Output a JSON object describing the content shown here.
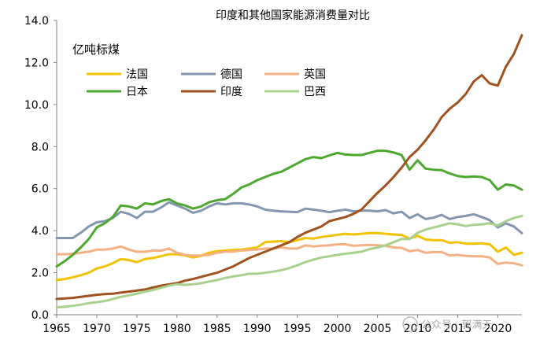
{
  "chart_data": {
    "type": "line",
    "title": "印度和其他国家能源消费量对比",
    "ylabel": "亿吨标煤",
    "xlabel": "",
    "xlim": [
      1965,
      2023
    ],
    "ylim": [
      0,
      14
    ],
    "yticks": [
      "0.0",
      "2.0",
      "4.0",
      "6.0",
      "8.0",
      "10.0",
      "12.0",
      "14.0"
    ],
    "xticks": [
      "1965",
      "1970",
      "1975",
      "1980",
      "1985",
      "1990",
      "1995",
      "2000",
      "2005",
      "2010",
      "2015",
      "2020"
    ],
    "legend_position": "top-left",
    "x": [
      1965,
      1966,
      1967,
      1968,
      1969,
      1970,
      1971,
      1972,
      1973,
      1974,
      1975,
      1976,
      1977,
      1978,
      1979,
      1980,
      1981,
      1982,
      1983,
      1984,
      1985,
      1986,
      1987,
      1988,
      1989,
      1990,
      1991,
      1992,
      1993,
      1994,
      1995,
      1996,
      1997,
      1998,
      1999,
      2000,
      2001,
      2002,
      2003,
      2004,
      2005,
      2006,
      2007,
      2008,
      2009,
      2010,
      2011,
      2012,
      2013,
      2014,
      2015,
      2016,
      2017,
      2018,
      2019,
      2020,
      2021,
      2022,
      2023
    ],
    "series": [
      {
        "name": "法国",
        "color": "#F2C200",
        "values": [
          1.65,
          1.7,
          1.78,
          1.88,
          2.0,
          2.2,
          2.3,
          2.45,
          2.65,
          2.6,
          2.5,
          2.65,
          2.7,
          2.78,
          2.88,
          2.88,
          2.82,
          2.72,
          2.8,
          2.95,
          3.02,
          3.05,
          3.08,
          3.1,
          3.15,
          3.2,
          3.45,
          3.48,
          3.5,
          3.45,
          3.55,
          3.65,
          3.62,
          3.7,
          3.75,
          3.8,
          3.85,
          3.82,
          3.85,
          3.88,
          3.88,
          3.85,
          3.82,
          3.8,
          3.62,
          3.75,
          3.58,
          3.55,
          3.55,
          3.42,
          3.45,
          3.38,
          3.38,
          3.4,
          3.35,
          3.0,
          3.2,
          2.85,
          2.95
        ]
      },
      {
        "name": "德国",
        "color": "#8497B0",
        "values": [
          3.65,
          3.65,
          3.65,
          3.9,
          4.2,
          4.4,
          4.45,
          4.6,
          4.9,
          4.8,
          4.6,
          4.9,
          4.9,
          5.1,
          5.35,
          5.2,
          5.05,
          4.85,
          4.95,
          5.15,
          5.3,
          5.25,
          5.3,
          5.3,
          5.25,
          5.15,
          5.0,
          4.95,
          4.92,
          4.9,
          4.88,
          5.05,
          5.0,
          4.95,
          4.88,
          4.95,
          5.0,
          4.92,
          4.95,
          4.95,
          4.92,
          4.98,
          4.82,
          4.9,
          4.6,
          4.78,
          4.55,
          4.62,
          4.75,
          4.55,
          4.65,
          4.7,
          4.78,
          4.65,
          4.5,
          4.15,
          4.35,
          4.2,
          3.88
        ]
      },
      {
        "name": "英国",
        "color": "#F4B183",
        "values": [
          2.88,
          2.88,
          2.9,
          2.95,
          3.0,
          3.1,
          3.1,
          3.15,
          3.25,
          3.1,
          3.0,
          3.0,
          3.05,
          3.05,
          3.15,
          2.95,
          2.85,
          2.82,
          2.82,
          2.85,
          2.95,
          3.0,
          3.0,
          3.05,
          3.08,
          3.1,
          3.15,
          3.15,
          3.2,
          3.15,
          3.15,
          3.3,
          3.25,
          3.28,
          3.3,
          3.35,
          3.35,
          3.28,
          3.3,
          3.32,
          3.3,
          3.28,
          3.2,
          3.18,
          3.02,
          3.08,
          2.95,
          2.98,
          2.98,
          2.82,
          2.85,
          2.8,
          2.78,
          2.78,
          2.72,
          2.42,
          2.48,
          2.45,
          2.35
        ]
      },
      {
        "name": "日本",
        "color": "#4EA72E",
        "values": [
          2.3,
          2.55,
          2.85,
          3.2,
          3.6,
          4.15,
          4.35,
          4.65,
          5.2,
          5.15,
          5.05,
          5.3,
          5.25,
          5.4,
          5.5,
          5.3,
          5.2,
          5.05,
          5.15,
          5.35,
          5.45,
          5.5,
          5.75,
          6.05,
          6.2,
          6.4,
          6.55,
          6.7,
          6.8,
          7.0,
          7.2,
          7.4,
          7.5,
          7.45,
          7.58,
          7.7,
          7.62,
          7.6,
          7.6,
          7.7,
          7.8,
          7.8,
          7.72,
          7.6,
          6.9,
          7.35,
          6.95,
          6.9,
          6.88,
          6.72,
          6.6,
          6.55,
          6.58,
          6.55,
          6.4,
          5.95,
          6.2,
          6.15,
          5.95
        ]
      },
      {
        "name": "印度",
        "color": "#A0521F",
        "values": [
          0.75,
          0.78,
          0.8,
          0.85,
          0.9,
          0.95,
          0.98,
          1.0,
          1.05,
          1.1,
          1.15,
          1.2,
          1.3,
          1.38,
          1.45,
          1.5,
          1.62,
          1.7,
          1.8,
          1.9,
          2.0,
          2.15,
          2.3,
          2.5,
          2.7,
          2.85,
          3.0,
          3.15,
          3.3,
          3.45,
          3.7,
          3.9,
          4.05,
          4.2,
          4.45,
          4.55,
          4.65,
          4.8,
          5.0,
          5.4,
          5.8,
          6.15,
          6.55,
          7.0,
          7.5,
          7.85,
          8.3,
          8.8,
          9.4,
          9.8,
          10.1,
          10.5,
          11.1,
          11.4,
          11.0,
          10.9,
          11.8,
          12.4,
          13.3
        ]
      },
      {
        "name": "巴西",
        "color": "#A9D18E",
        "values": [
          0.35,
          0.38,
          0.42,
          0.48,
          0.55,
          0.6,
          0.65,
          0.75,
          0.85,
          0.92,
          1.0,
          1.1,
          1.18,
          1.28,
          1.38,
          1.45,
          1.42,
          1.45,
          1.5,
          1.58,
          1.65,
          1.75,
          1.82,
          1.88,
          1.95,
          1.95,
          2.0,
          2.05,
          2.12,
          2.22,
          2.35,
          2.5,
          2.62,
          2.72,
          2.78,
          2.85,
          2.9,
          2.95,
          3.0,
          3.12,
          3.2,
          3.3,
          3.45,
          3.6,
          3.6,
          3.9,
          4.05,
          4.15,
          4.25,
          4.35,
          4.3,
          4.22,
          4.28,
          4.3,
          4.35,
          4.25,
          4.45,
          4.6,
          4.7
        ]
      }
    ]
  },
  "watermark": "公众号 · 郭满天"
}
